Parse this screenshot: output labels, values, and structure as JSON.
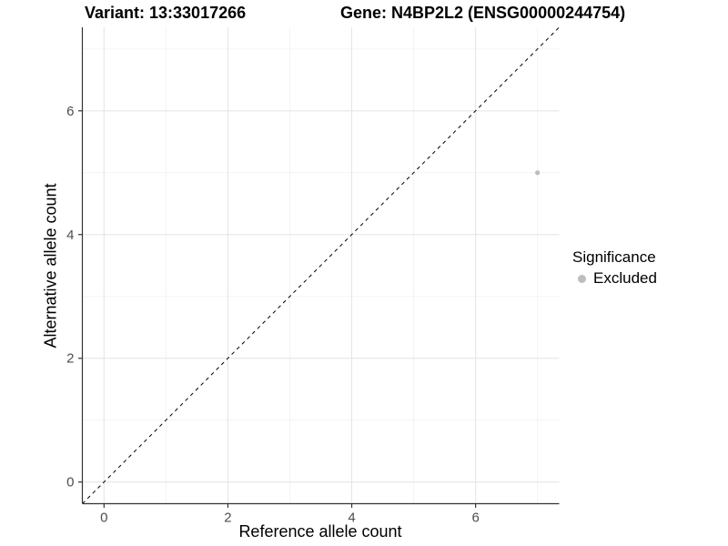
{
  "chart_data": {
    "type": "scatter",
    "title_left": "Variant: 13:33017266",
    "title_right": "Gene: N4BP2L2 (ENSG00000244754)",
    "xlabel": "Reference allele count",
    "ylabel": "Alternative allele count",
    "xlim": [
      -0.35,
      7.35
    ],
    "ylim": [
      -0.35,
      7.35
    ],
    "x_ticks": [
      0,
      2,
      4,
      6
    ],
    "y_ticks": [
      0,
      2,
      4,
      6
    ],
    "x_minor_ticks": [
      1,
      3,
      5,
      7
    ],
    "y_minor_ticks": [
      1,
      3,
      5,
      7
    ],
    "grid": "major+minor on white background",
    "series": [
      {
        "name": "Excluded",
        "color": "#bdbdbd",
        "points": [
          {
            "x": 7,
            "y": 5
          }
        ]
      }
    ],
    "reference_line": {
      "type": "identity",
      "slope": 1,
      "intercept": 0,
      "style": "dashed",
      "color": "#000000"
    },
    "legend": {
      "title": "Significance",
      "position": "right",
      "items": [
        {
          "label": "Excluded",
          "color": "#bdbdbd"
        }
      ]
    }
  },
  "colors": {
    "axis_line": "#333333",
    "tick_mark": "#333333",
    "tick_label": "#4d4d4d",
    "grid_major": "#e6e6e6",
    "grid_minor": "#f0f0f0",
    "background": "#ffffff"
  }
}
